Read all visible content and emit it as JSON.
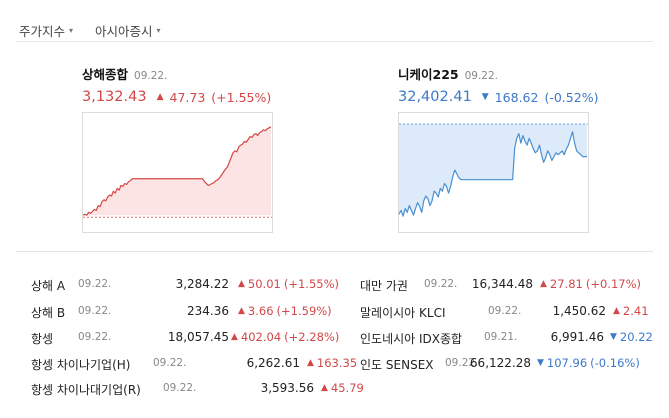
{
  "tabs": [
    {
      "label": "주가지수",
      "caret": "▾"
    },
    {
      "label": "아시아증시",
      "caret": "▾"
    }
  ],
  "charts": [
    {
      "name": "상해종합",
      "date": "09.22.",
      "price": "3,132.43",
      "arrow": "▲",
      "change": "47.73",
      "pct": "(+1.55%)",
      "direction": "up",
      "color": "#d24848",
      "fill": "#fde4e4",
      "series": [
        0.05,
        0.06,
        0.05,
        0.08,
        0.07,
        0.09,
        0.11,
        0.1,
        0.15,
        0.14,
        0.19,
        0.21,
        0.2,
        0.24,
        0.26,
        0.25,
        0.3,
        0.28,
        0.33,
        0.31,
        0.36,
        0.35,
        0.38,
        0.37,
        0.4,
        0.41,
        0.43,
        0.43,
        0.43,
        0.43,
        0.43,
        0.43,
        0.43,
        0.43,
        0.43,
        0.43,
        0.43,
        0.43,
        0.43,
        0.43,
        0.43,
        0.43,
        0.43,
        0.43,
        0.43,
        0.43,
        0.43,
        0.43,
        0.43,
        0.43,
        0.43,
        0.43,
        0.43,
        0.43,
        0.43,
        0.43,
        0.43,
        0.43,
        0.43,
        0.43,
        0.43,
        0.43,
        0.43,
        0.43,
        0.4,
        0.38,
        0.36,
        0.37,
        0.38,
        0.39,
        0.41,
        0.42,
        0.44,
        0.47,
        0.5,
        0.53,
        0.55,
        0.6,
        0.65,
        0.7,
        0.72,
        0.71,
        0.76,
        0.78,
        0.79,
        0.82,
        0.81,
        0.84,
        0.87,
        0.86,
        0.89,
        0.9,
        0.88,
        0.91,
        0.92,
        0.94,
        0.93,
        0.95,
        0.96,
        0.97
      ]
    },
    {
      "name": "니케이225",
      "date": "09.22.",
      "price": "32,402.41",
      "arrow": "▼",
      "change": "168.62",
      "pct": "(-0.52%)",
      "direction": "down",
      "color": "#4a8fd0",
      "fill": "#dceafa",
      "series": [
        0.06,
        0.1,
        0.04,
        0.12,
        0.08,
        0.15,
        0.1,
        0.05,
        0.12,
        0.18,
        0.14,
        0.08,
        0.2,
        0.25,
        0.22,
        0.15,
        0.2,
        0.3,
        0.28,
        0.24,
        0.33,
        0.3,
        0.38,
        0.35,
        0.28,
        0.35,
        0.45,
        0.52,
        0.48,
        0.44,
        0.42,
        0.42,
        0.42,
        0.42,
        0.42,
        0.42,
        0.42,
        0.42,
        0.42,
        0.42,
        0.42,
        0.42,
        0.42,
        0.42,
        0.42,
        0.42,
        0.42,
        0.42,
        0.42,
        0.42,
        0.42,
        0.42,
        0.42,
        0.42,
        0.42,
        0.42,
        0.75,
        0.85,
        0.9,
        0.8,
        0.88,
        0.82,
        0.78,
        0.85,
        0.8,
        0.74,
        0.7,
        0.72,
        0.78,
        0.68,
        0.6,
        0.65,
        0.72,
        0.68,
        0.62,
        0.66,
        0.7,
        0.68,
        0.7,
        0.72,
        0.68,
        0.74,
        0.78,
        0.85,
        0.92,
        0.8,
        0.72,
        0.7,
        0.68,
        0.66,
        0.66,
        0.66
      ]
    }
  ],
  "quotes_left": [
    {
      "name": "상해 A",
      "date": "09.22.",
      "value": "3,284.22",
      "arrow": "▲",
      "change": "50.01",
      "pct": "(+1.55%)",
      "direction": "up"
    },
    {
      "name": "상해 B",
      "date": "09.22.",
      "value": "234.36",
      "arrow": "▲",
      "change": "3.66",
      "pct": "(+1.59%)",
      "direction": "up"
    },
    {
      "name": "항셍",
      "date": "09.22.",
      "value": "18,057.45",
      "arrow": "▲",
      "change": "402.04",
      "pct": "(+2.28%)",
      "direction": "up"
    },
    {
      "name": "항셍 차이나기업(H)",
      "date": "09.22.",
      "value": "6,262.61",
      "arrow": "▲",
      "change": "163.35",
      "pct": "",
      "direction": "up"
    },
    {
      "name": "항셍 차이나대기업(R)",
      "date": "09.22.",
      "value": "3,593.56",
      "arrow": "▲",
      "change": "45.79",
      "pct": "",
      "direction": "up"
    }
  ],
  "quotes_right": [
    {
      "name": "대만 가권",
      "date": "09.22.",
      "value": "16,344.48",
      "arrow": "▲",
      "change": "27.81",
      "pct": "(+0.17%)",
      "direction": "up"
    },
    {
      "name": "말레이시아 KLCI",
      "date": "09.22.",
      "value": "1,450.62",
      "arrow": "▲",
      "change": "2.41",
      "pct": "",
      "direction": "up"
    },
    {
      "name": "인도네시아 IDX종합",
      "date": "09.21.",
      "value": "6,991.46",
      "arrow": "▼",
      "change": "20.22",
      "pct": "",
      "direction": "down"
    },
    {
      "name": "인도 SENSEX",
      "date": "09.22.",
      "value": "66,122.28",
      "arrow": "▼",
      "change": "107.96",
      "pct": "(-0.16%)",
      "direction": "down"
    }
  ]
}
